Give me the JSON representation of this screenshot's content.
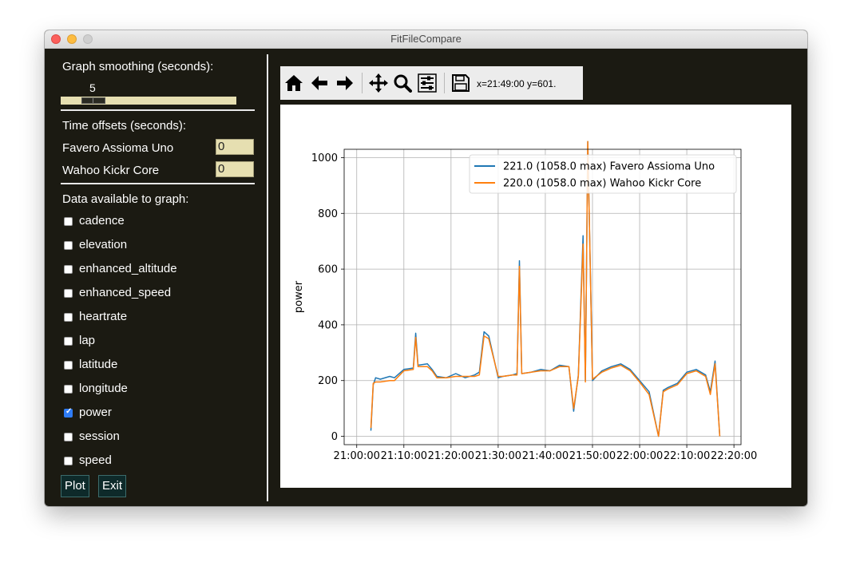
{
  "window": {
    "title": "FitFileCompare"
  },
  "smoothing": {
    "label": "Graph smoothing (seconds):",
    "value": "5"
  },
  "offsets": {
    "label": "Time offsets (seconds):",
    "devices": [
      {
        "name": "Favero Assioma Uno",
        "value": "0"
      },
      {
        "name": "Wahoo Kickr Core",
        "value": "0"
      }
    ]
  },
  "data_fields": {
    "label": "Data available to graph:",
    "items": [
      {
        "label": "cadence",
        "checked": false
      },
      {
        "label": "elevation",
        "checked": false
      },
      {
        "label": "enhanced_altitude",
        "checked": false
      },
      {
        "label": "enhanced_speed",
        "checked": false
      },
      {
        "label": "heartrate",
        "checked": false
      },
      {
        "label": "lap",
        "checked": false
      },
      {
        "label": "latitude",
        "checked": false
      },
      {
        "label": "longitude",
        "checked": false
      },
      {
        "label": "power",
        "checked": true
      },
      {
        "label": "session",
        "checked": false
      },
      {
        "label": "speed",
        "checked": false
      }
    ]
  },
  "buttons": {
    "plot": "Plot",
    "exit": "Exit"
  },
  "toolbar": {
    "icons": [
      "home-icon",
      "back-arrow-icon",
      "forward-arrow-icon",
      "pan-icon",
      "zoom-icon",
      "configure-icon",
      "save-icon"
    ],
    "coords": "x=21:49:00 y=601."
  },
  "chart_data": {
    "type": "line",
    "title": "",
    "xlabel": "",
    "ylabel": "power",
    "xlim": [
      "21:00:00",
      "22:20:00"
    ],
    "ylim": [
      0,
      1000
    ],
    "yticks": [
      0,
      200,
      400,
      600,
      800,
      1000
    ],
    "xticks": [
      "21:00:00",
      "21:10:00",
      "21:20:00",
      "21:30:00",
      "21:40:00",
      "21:50:00",
      "22:00:00",
      "22:10:00",
      "22:20:00"
    ],
    "grid": true,
    "legend_position": "top-right",
    "series": [
      {
        "name": "221.0 (1058.0 max) Favero Assioma Uno",
        "color": "#1f77b4",
        "x": [
          "21:03:00",
          "21:03:30",
          "21:04:00",
          "21:05:00",
          "21:07:00",
          "21:08:00",
          "21:10:00",
          "21:12:00",
          "21:12:30",
          "21:13:00",
          "21:15:00",
          "21:16:00",
          "21:17:00",
          "21:19:00",
          "21:21:00",
          "21:23:00",
          "21:25:00",
          "21:26:00",
          "21:27:00",
          "21:28:00",
          "21:30:00",
          "21:31:00",
          "21:33:00",
          "21:34:00",
          "21:34:30",
          "21:35:00",
          "21:37:00",
          "21:39:00",
          "21:41:00",
          "21:43:00",
          "21:45:00",
          "21:46:00",
          "21:47:00",
          "21:48:00",
          "21:48:30",
          "21:49:00",
          "21:50:00",
          "21:52:00",
          "21:54:00",
          "21:56:00",
          "21:58:00",
          "22:00:00",
          "22:02:00",
          "22:04:00",
          "22:05:00",
          "22:06:00",
          "22:08:00",
          "22:10:00",
          "22:12:00",
          "22:14:00",
          "22:15:00",
          "22:16:00",
          "22:17:00"
        ],
        "values": [
          20,
          185,
          210,
          205,
          215,
          210,
          240,
          245,
          370,
          255,
          260,
          240,
          215,
          210,
          225,
          210,
          220,
          230,
          375,
          360,
          210,
          215,
          220,
          225,
          630,
          225,
          230,
          240,
          235,
          255,
          250,
          90,
          220,
          720,
          200,
          1058,
          200,
          235,
          250,
          260,
          240,
          200,
          160,
          0,
          165,
          175,
          190,
          230,
          240,
          220,
          160,
          270,
          0
        ]
      },
      {
        "name": "220.0 (1058.0 max) Wahoo Kickr Core",
        "color": "#ff7f0e",
        "x": [
          "21:03:00",
          "21:03:30",
          "21:04:00",
          "21:05:00",
          "21:07:00",
          "21:08:00",
          "21:10:00",
          "21:12:00",
          "21:12:30",
          "21:13:00",
          "21:15:00",
          "21:16:00",
          "21:17:00",
          "21:19:00",
          "21:21:00",
          "21:23:00",
          "21:25:00",
          "21:26:00",
          "21:27:00",
          "21:28:00",
          "21:30:00",
          "21:31:00",
          "21:33:00",
          "21:34:00",
          "21:34:30",
          "21:35:00",
          "21:37:00",
          "21:39:00",
          "21:41:00",
          "21:43:00",
          "21:45:00",
          "21:46:00",
          "21:47:00",
          "21:48:00",
          "21:48:30",
          "21:49:00",
          "21:50:00",
          "21:52:00",
          "21:54:00",
          "21:56:00",
          "21:58:00",
          "22:00:00",
          "22:02:00",
          "22:04:00",
          "22:05:00",
          "22:06:00",
          "22:08:00",
          "22:10:00",
          "22:12:00",
          "22:14:00",
          "22:15:00",
          "22:16:00",
          "22:17:00"
        ],
        "values": [
          30,
          190,
          195,
          195,
          200,
          200,
          235,
          240,
          355,
          250,
          250,
          235,
          210,
          210,
          215,
          215,
          215,
          220,
          360,
          350,
          215,
          215,
          220,
          220,
          610,
          225,
          230,
          235,
          235,
          250,
          250,
          100,
          215,
          690,
          195,
          1058,
          205,
          230,
          245,
          255,
          235,
          195,
          150,
          0,
          160,
          170,
          185,
          225,
          235,
          215,
          150,
          260,
          0
        ]
      }
    ]
  }
}
